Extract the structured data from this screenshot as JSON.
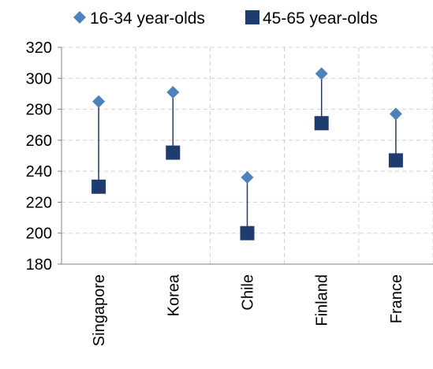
{
  "chart_data": {
    "type": "scatter",
    "categories": [
      "Singapore",
      "Korea",
      "Chile",
      "Finland",
      "France"
    ],
    "series": [
      {
        "name": "16-34 year-olds",
        "marker": "diamond",
        "color": "#4f81bd",
        "values": [
          285,
          291,
          236,
          303,
          277
        ]
      },
      {
        "name": "45-65 year-olds",
        "marker": "square",
        "color": "#1f3c6e",
        "values": [
          230,
          252,
          200,
          271,
          247
        ]
      }
    ],
    "ylim": [
      180,
      320
    ],
    "yticks": [
      180,
      200,
      220,
      240,
      260,
      280,
      300,
      320
    ],
    "grid": true,
    "legend_position": "top",
    "connector_color": "#1f3c6e",
    "xlabel": "",
    "ylabel": ""
  }
}
